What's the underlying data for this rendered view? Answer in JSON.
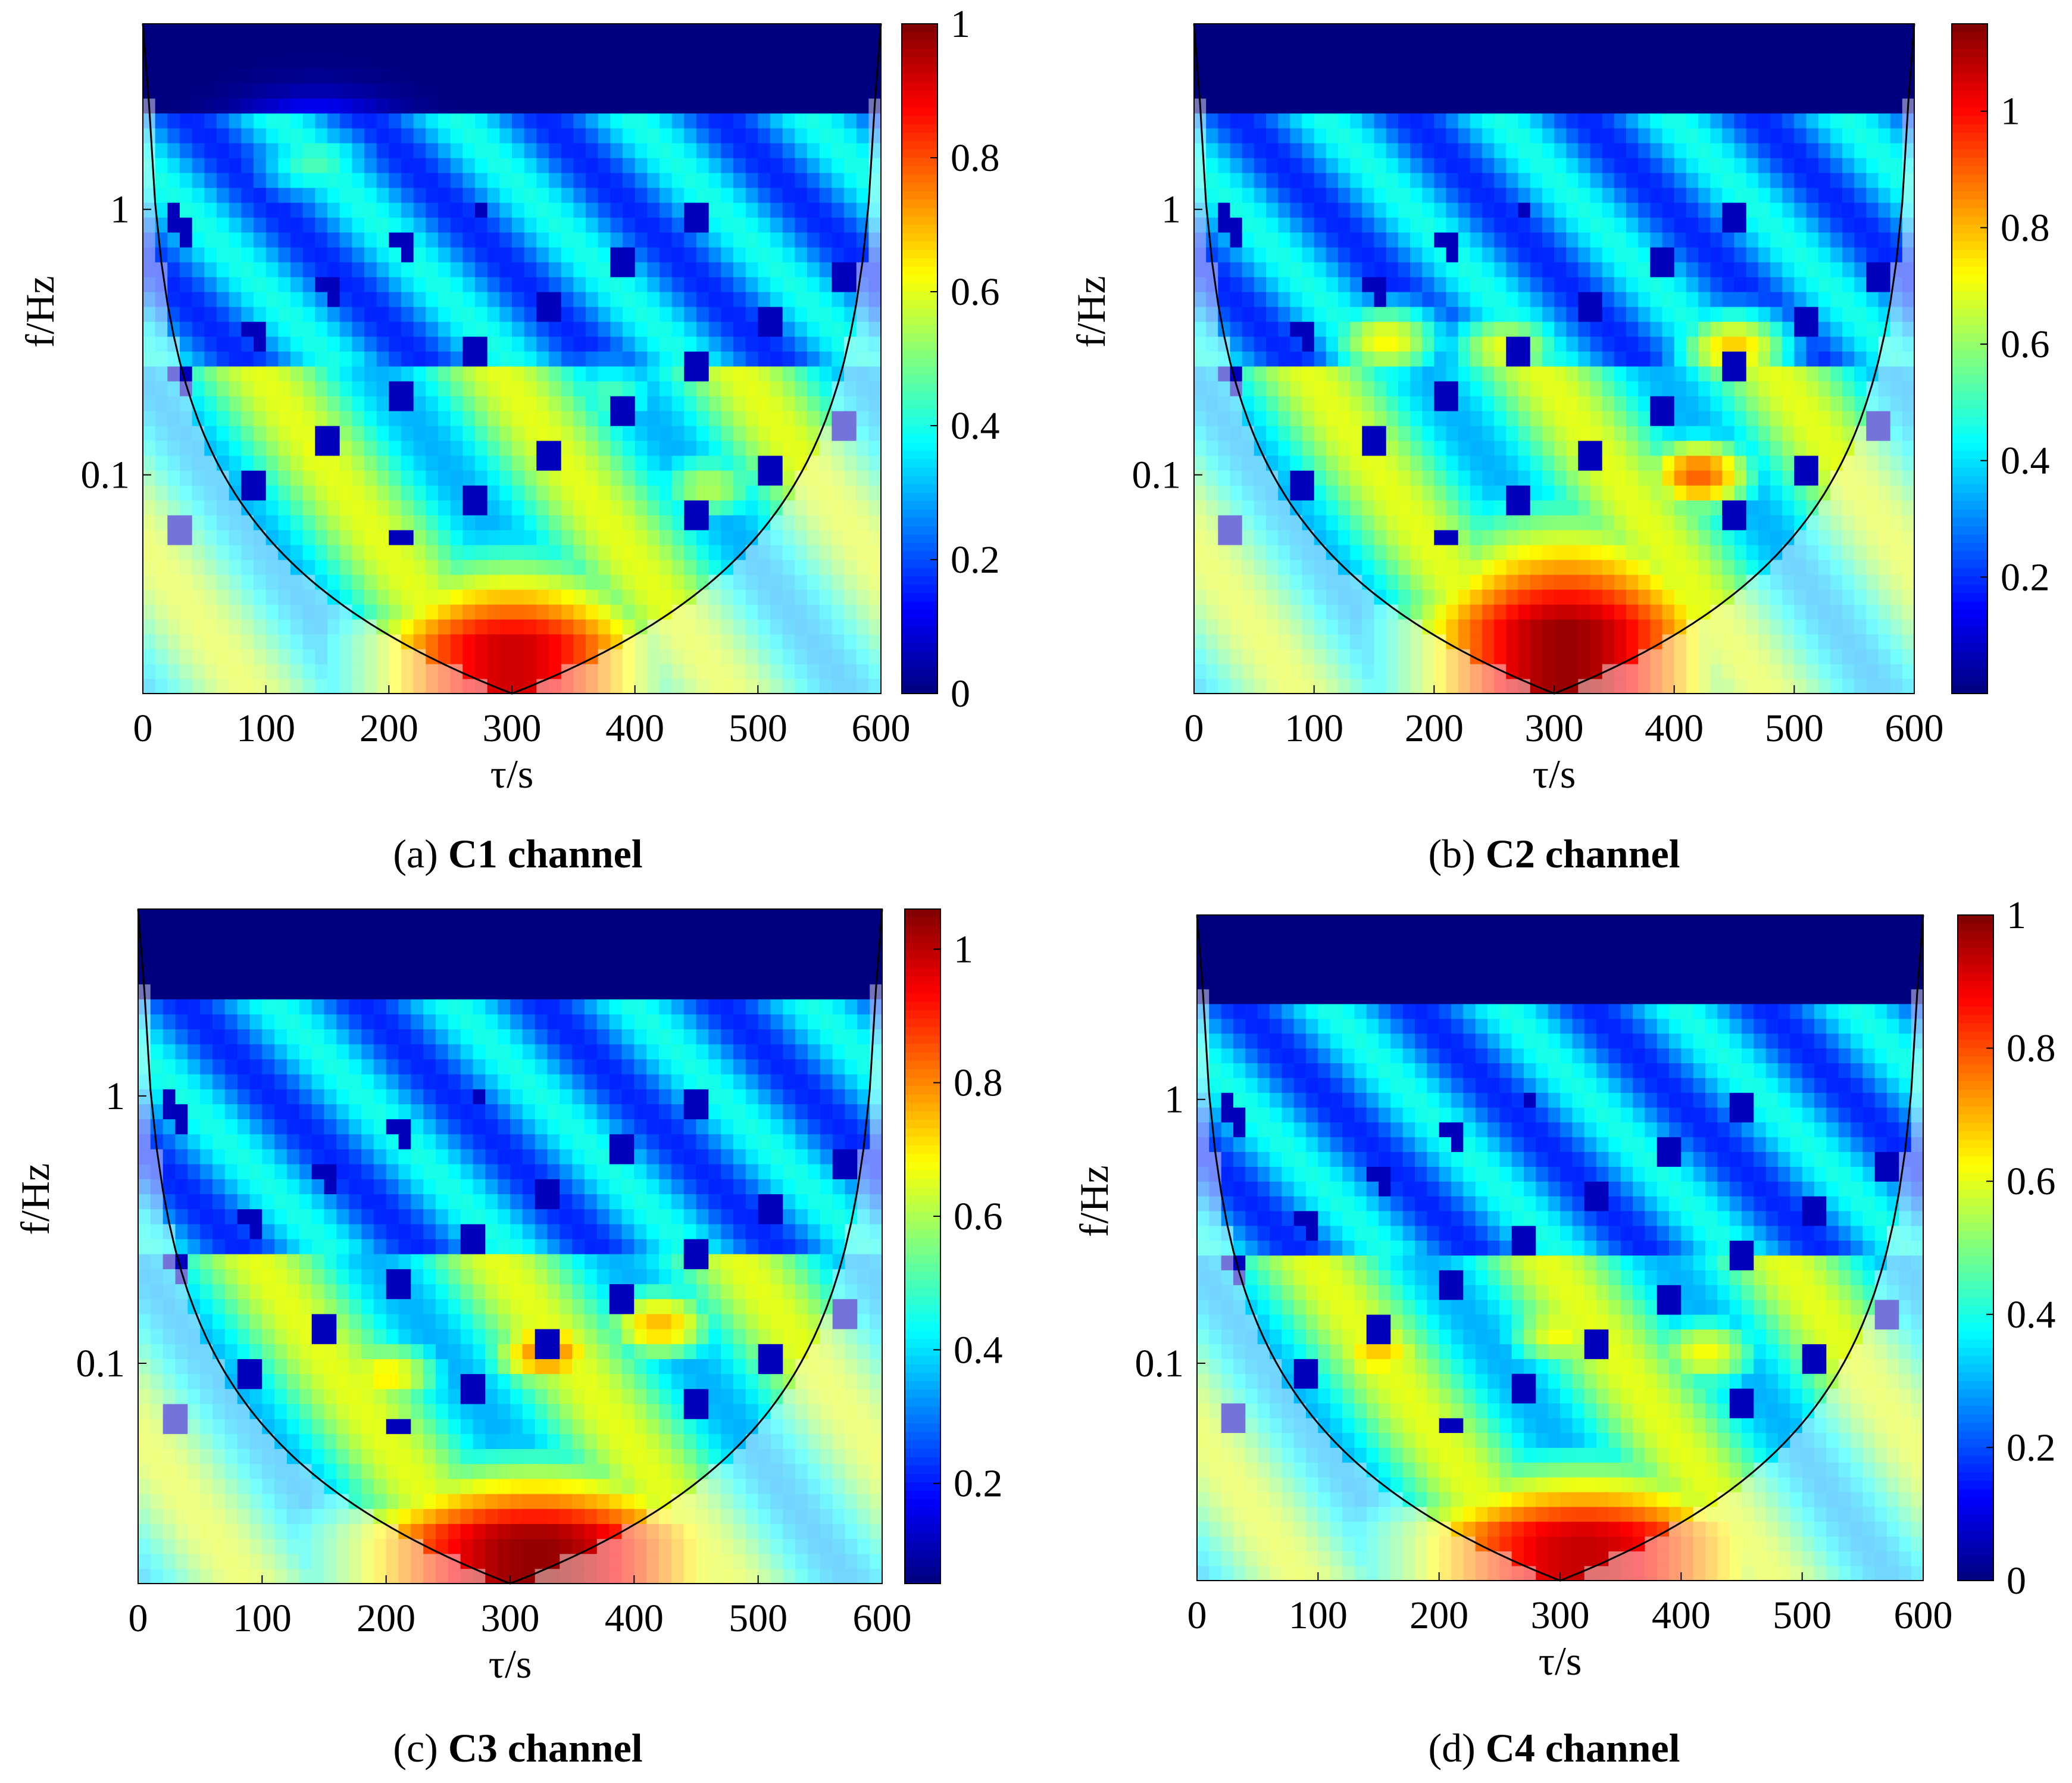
{
  "figure": {
    "panels": [
      {
        "id": "a",
        "caption_letter": "(a)",
        "caption_text": "C1 channel"
      },
      {
        "id": "b",
        "caption_letter": "(b)",
        "caption_text": "C2 channel"
      },
      {
        "id": "c",
        "caption_letter": "(c)",
        "caption_text": "C3 channel"
      },
      {
        "id": "d",
        "caption_letter": "(d)",
        "caption_text": "C4 channel"
      }
    ]
  },
  "colors": {
    "jet": [
      "#00007f",
      "#0000ff",
      "#007fff",
      "#00ffff",
      "#7fff7f",
      "#ffff00",
      "#ff7f00",
      "#ff0000",
      "#7f0000"
    ],
    "coi_tint": "#ffffff"
  },
  "chart_data": [
    {
      "id": "a",
      "type": "heatmap",
      "title": "",
      "xlabel": "τ/s",
      "ylabel": "f/Hz",
      "xlim": [
        0,
        600
      ],
      "ylim": [
        0.015,
        5
      ],
      "yscale": "log",
      "x_ticks": [
        0,
        100,
        200,
        300,
        400,
        500,
        600
      ],
      "x_tick_labels": [
        "0",
        "100",
        "200",
        "300",
        "400",
        "500",
        "600"
      ],
      "y_ticks": [
        1,
        0.1
      ],
      "y_tick_labels": [
        "1",
        "0.1"
      ],
      "colorbar": {
        "range": [
          0,
          1
        ],
        "ticks": [
          0,
          0.2,
          0.4,
          0.6,
          0.8,
          1
        ],
        "tick_labels": [
          "0",
          "0.2",
          "0.4",
          "0.6",
          "0.8",
          "1"
        ]
      },
      "ridge": {
        "center_s": 300,
        "peak_value": 0.92,
        "top_hz": 0.06,
        "width_s": 180
      },
      "hotspots": [
        {
          "t": 140,
          "f": 0.12,
          "v": 0.62
        },
        {
          "t": 140,
          "f": 1.5,
          "v": 0.45
        },
        {
          "t": 380,
          "f": 0.2,
          "v": 0.45
        },
        {
          "t": 460,
          "f": 0.09,
          "v": 0.55
        }
      ]
    },
    {
      "id": "b",
      "type": "heatmap",
      "title": "",
      "xlabel": "τ/s",
      "ylabel": "f/Hz",
      "xlim": [
        0,
        600
      ],
      "ylim": [
        0.015,
        5
      ],
      "yscale": "log",
      "x_ticks": [
        0,
        100,
        200,
        300,
        400,
        500,
        600
      ],
      "x_tick_labels": [
        "0",
        "100",
        "200",
        "300",
        "400",
        "500",
        "600"
      ],
      "y_ticks": [
        1,
        0.1
      ],
      "y_tick_labels": [
        "1",
        "0.1"
      ],
      "colorbar": {
        "range": [
          0,
          1.15
        ],
        "ticks": [
          0.2,
          0.4,
          0.6,
          0.8,
          1
        ],
        "tick_labels": [
          "0.2",
          "0.4",
          "0.6",
          "0.8",
          "1"
        ]
      },
      "ridge": {
        "center_s": 310,
        "peak_value": 1.12,
        "top_hz": 0.09,
        "width_s": 190
      },
      "hotspots": [
        {
          "t": 160,
          "f": 0.32,
          "v": 0.72
        },
        {
          "t": 260,
          "f": 0.3,
          "v": 0.7
        },
        {
          "t": 450,
          "f": 0.3,
          "v": 0.78
        },
        {
          "t": 420,
          "f": 0.1,
          "v": 0.9
        }
      ]
    },
    {
      "id": "c",
      "type": "heatmap",
      "title": "",
      "xlabel": "τ/s",
      "ylabel": "f/Hz",
      "xlim": [
        0,
        600
      ],
      "ylim": [
        0.015,
        5
      ],
      "yscale": "log",
      "x_ticks": [
        0,
        100,
        200,
        300,
        400,
        500,
        600
      ],
      "x_tick_labels": [
        "0",
        "100",
        "200",
        "300",
        "400",
        "500",
        "600"
      ],
      "y_ticks": [
        1,
        0.1
      ],
      "y_tick_labels": [
        "1",
        "0.1"
      ],
      "colorbar": {
        "range": [
          0.05,
          1.06
        ],
        "ticks": [
          0.2,
          0.4,
          0.6,
          0.8,
          1
        ],
        "tick_labels": [
          "0.2",
          "0.4",
          "0.6",
          "0.8",
          "1"
        ]
      },
      "ridge": {
        "center_s": 320,
        "peak_value": 1.04,
        "top_hz": 0.05,
        "width_s": 230
      },
      "hotspots": [
        {
          "t": 330,
          "f": 0.11,
          "v": 0.82
        },
        {
          "t": 420,
          "f": 0.14,
          "v": 0.75
        },
        {
          "t": 200,
          "f": 0.09,
          "v": 0.7
        }
      ]
    },
    {
      "id": "d",
      "type": "heatmap",
      "title": "",
      "xlabel": "τ/s",
      "ylabel": "f/Hz",
      "xlim": [
        0,
        600
      ],
      "ylim": [
        0.015,
        5
      ],
      "yscale": "log",
      "x_ticks": [
        0,
        100,
        200,
        300,
        400,
        500,
        600
      ],
      "x_tick_labels": [
        "0",
        "100",
        "200",
        "300",
        "400",
        "500",
        "600"
      ],
      "y_ticks": [
        1,
        0.1
      ],
      "y_tick_labels": [
        "1",
        "0.1"
      ],
      "colorbar": {
        "range": [
          0,
          1
        ],
        "ticks": [
          0,
          0.2,
          0.4,
          0.6,
          0.8,
          1
        ],
        "tick_labels": [
          "0",
          "0.2",
          "0.4",
          "0.6",
          "0.8",
          "1"
        ]
      },
      "ridge": {
        "center_s": 320,
        "peak_value": 0.93,
        "top_hz": 0.05,
        "width_s": 230
      },
      "hotspots": [
        {
          "t": 150,
          "f": 0.11,
          "v": 0.68
        },
        {
          "t": 300,
          "f": 0.13,
          "v": 0.62
        },
        {
          "t": 420,
          "f": 0.11,
          "v": 0.62
        }
      ]
    }
  ]
}
